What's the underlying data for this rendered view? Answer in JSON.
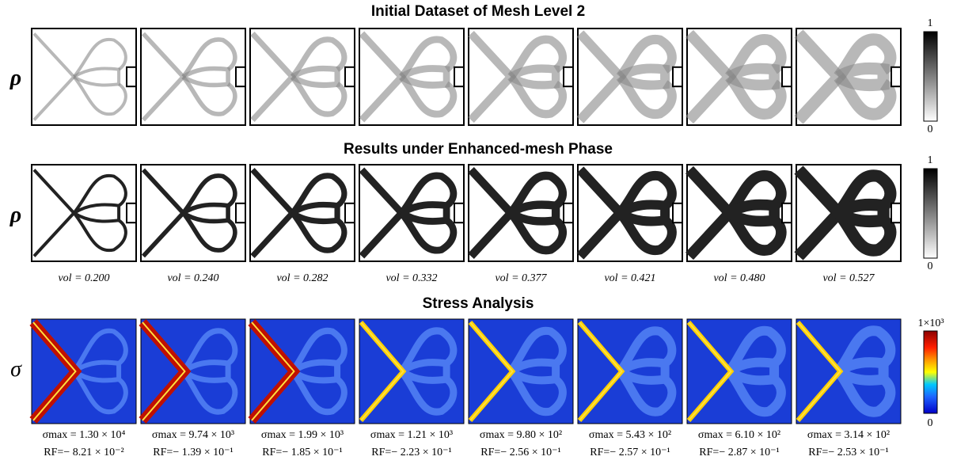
{
  "rows": [
    {
      "title": "Initial Dataset of Mesh Level 2",
      "label": "ρ",
      "colorbar": {
        "max": "1",
        "min": "0"
      }
    },
    {
      "title": "Results under Enhanced-mesh Phase",
      "label": "ρ",
      "colorbar": {
        "max": "1",
        "min": "0"
      }
    },
    {
      "title": "Stress Analysis",
      "label": "σ",
      "colorbar": {
        "max": "1×10³",
        "min": "0"
      }
    }
  ],
  "vol": [
    "vol = 0.200",
    "vol = 0.240",
    "vol = 0.282",
    "vol = 0.332",
    "vol = 0.377",
    "vol = 0.421",
    "vol = 0.480",
    "vol = 0.527"
  ],
  "sigma_max": [
    "σmax = 1.30 × 10⁴",
    "σmax = 9.74 × 10³",
    "σmax = 1.99 × 10³",
    "σmax = 1.21 × 10³",
    "σmax = 9.80 × 10²",
    "σmax = 5.43 × 10²",
    "σmax = 6.10 × 10²",
    "σmax = 3.14 × 10²"
  ],
  "rf": [
    "RF=− 8.21 × 10⁻²",
    "RF=− 1.39 × 10⁻¹",
    "RF=− 1.85 × 10⁻¹",
    "RF=− 2.23 × 10⁻¹",
    "RF=− 2.56 × 10⁻¹",
    "RF=− 2.57 × 10⁻¹",
    "RF=− 2.87 × 10⁻¹",
    "RF=− 2.53 × 10⁻¹"
  ]
}
